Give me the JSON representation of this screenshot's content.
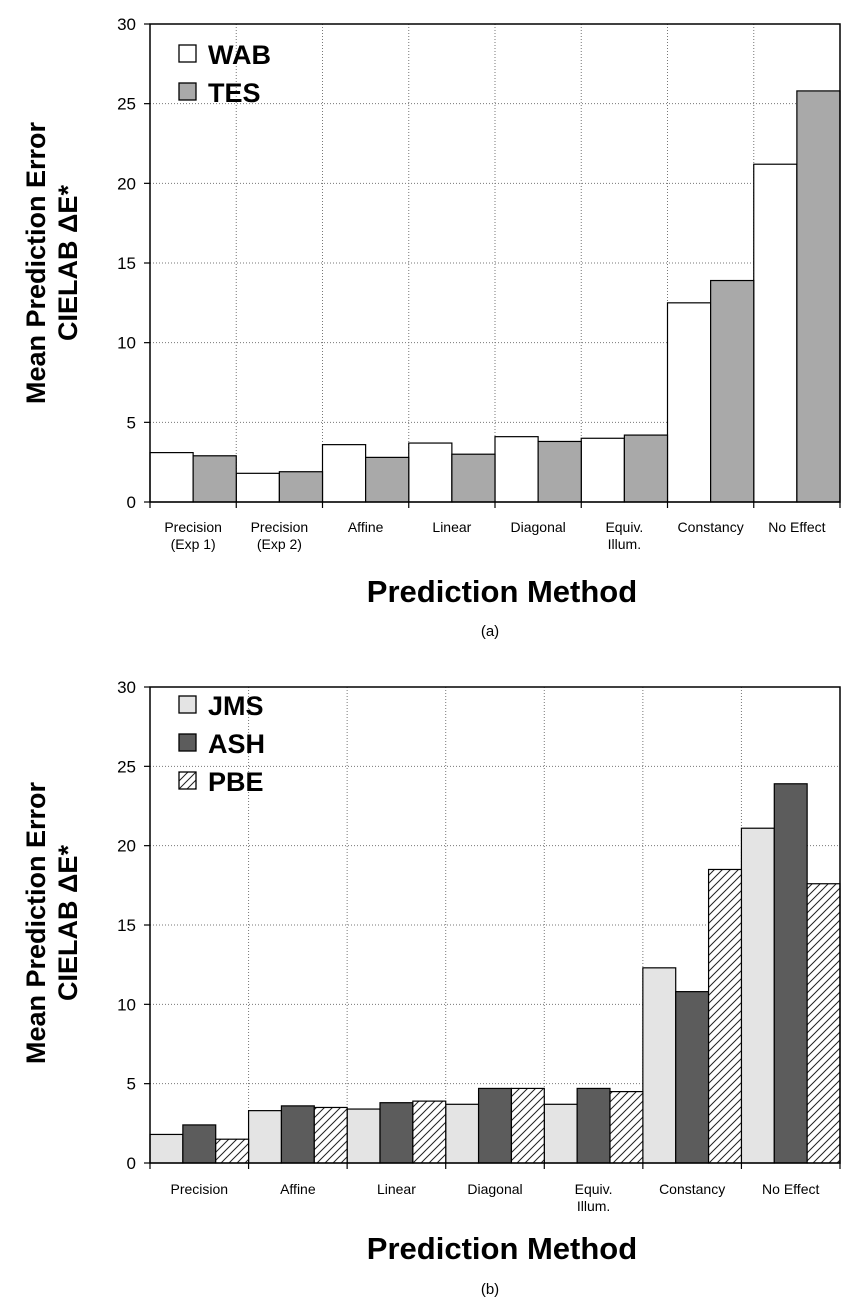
{
  "figure": {
    "panels": [
      {
        "panel_label": "(a)",
        "ylabel_line1": "Mean Prediction Error",
        "ylabel_line2": "CIELAB ΔE*",
        "xlabel": "Prediction Method"
      },
      {
        "panel_label": "(b)",
        "ylabel_line1": "Mean Prediction Error",
        "ylabel_line2": "CIELAB ΔE*",
        "xlabel": "Prediction Method"
      }
    ]
  },
  "chart_data": [
    {
      "type": "bar",
      "title": "",
      "xlabel": "Prediction Method",
      "ylabel": "Mean Prediction Error CIELAB ΔE*",
      "ylim": [
        0,
        30
      ],
      "yticks": [
        0,
        5,
        10,
        15,
        20,
        25,
        30
      ],
      "grid": true,
      "legend_position": "top-left",
      "categories": [
        [
          "Precision",
          "(Exp 1)"
        ],
        [
          "Precision",
          "(Exp 2)"
        ],
        [
          "Affine"
        ],
        [
          "Linear"
        ],
        [
          "Diagonal"
        ],
        [
          "Equiv.",
          "Illum."
        ],
        [
          "Constancy"
        ],
        [
          "No Effect"
        ]
      ],
      "series": [
        {
          "name": "WAB",
          "fill": "#ffffff",
          "pattern": "none",
          "values": [
            3.1,
            1.8,
            3.6,
            3.7,
            4.1,
            4.0,
            12.5,
            21.2
          ]
        },
        {
          "name": "TES",
          "fill": "#a9a9a9",
          "pattern": "solid",
          "values": [
            2.9,
            1.9,
            2.8,
            3.0,
            3.8,
            4.2,
            13.9,
            25.8
          ]
        }
      ]
    },
    {
      "type": "bar",
      "title": "",
      "xlabel": "Prediction Method",
      "ylabel": "Mean Prediction Error CIELAB ΔE*",
      "ylim": [
        0,
        30
      ],
      "yticks": [
        0,
        5,
        10,
        15,
        20,
        25,
        30
      ],
      "grid": true,
      "legend_position": "top-left",
      "categories": [
        [
          "Precision"
        ],
        [
          "Affine"
        ],
        [
          "Linear"
        ],
        [
          "Diagonal"
        ],
        [
          "Equiv.",
          "Illum."
        ],
        [
          "Constancy"
        ],
        [
          "No Effect"
        ]
      ],
      "series": [
        {
          "name": "JMS",
          "fill": "#e4e4e4",
          "pattern": "solid",
          "values": [
            1.8,
            3.3,
            3.4,
            3.7,
            3.7,
            12.3,
            21.1
          ]
        },
        {
          "name": "ASH",
          "fill": "#5c5c5c",
          "pattern": "solid",
          "values": [
            2.4,
            3.6,
            3.8,
            4.7,
            4.7,
            10.8,
            23.9
          ]
        },
        {
          "name": "PBE",
          "fill": "#ffffff",
          "pattern": "hatch",
          "values": [
            1.5,
            3.5,
            3.9,
            4.7,
            4.5,
            18.5,
            17.6
          ]
        }
      ]
    }
  ]
}
